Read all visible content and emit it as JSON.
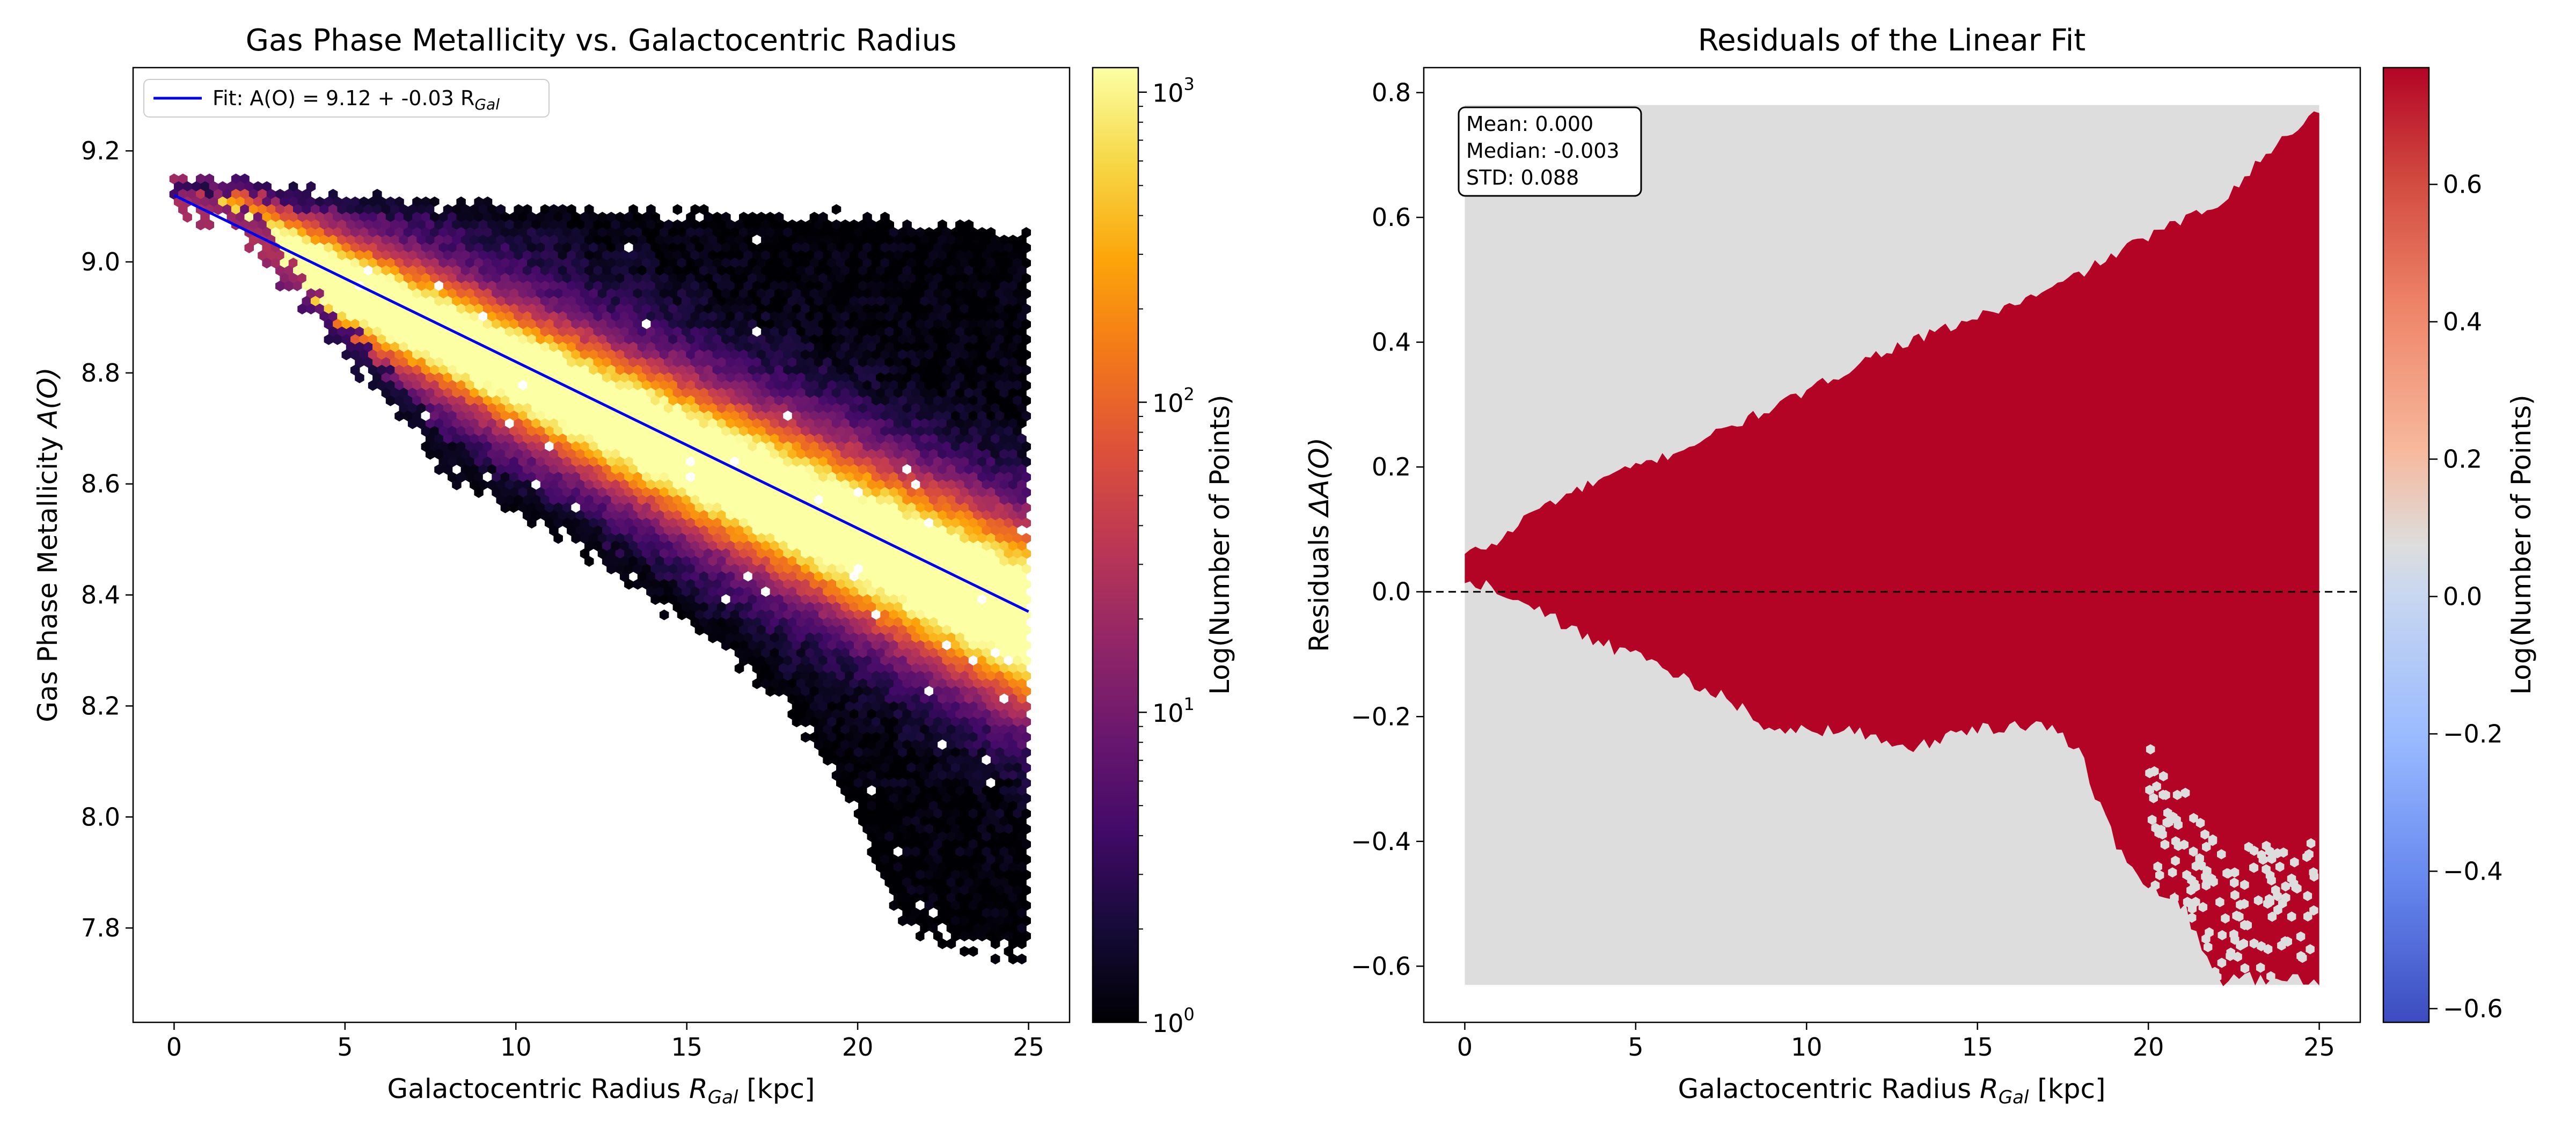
{
  "chart_data": [
    {
      "type": "heatmap",
      "subtype": "hexbin",
      "title": "Gas Phase Metallicity vs. Galactocentric Radius",
      "xlabel": "Galactocentric Radius R_Gal [kpc]",
      "xlabel_main": "Galactocentric Radius ",
      "xlabel_var": "R",
      "xlabel_sub": "Gal",
      "xlabel_unit": " [kpc]",
      "ylabel": "Gas Phase Metallicity A(O)",
      "ylabel_main": "Gas Phase Metallicity ",
      "ylabel_var": "A(O)",
      "xlim": [
        -1.2,
        26.2
      ],
      "ylim": [
        7.63,
        9.35
      ],
      "xticks": [
        0,
        5,
        10,
        15,
        20,
        25
      ],
      "xtick_labels": [
        "0",
        "5",
        "10",
        "15",
        "20",
        "25"
      ],
      "yticks": [
        7.8,
        8.0,
        8.2,
        8.4,
        8.6,
        8.8,
        9.0,
        9.2
      ],
      "ytick_labels": [
        "7.8",
        "8.0",
        "8.2",
        "8.4",
        "8.6",
        "8.8",
        "9.0",
        "9.2"
      ],
      "colormap": "inferno",
      "colorbar_label": "Log(Number of Points)",
      "colorbar_scale": "log",
      "colorbar_range": [
        1,
        1200
      ],
      "colorbar_tick_labels": [
        {
          "base": "10",
          "exp": "0",
          "value": 1
        },
        {
          "base": "10",
          "exp": "1",
          "value": 10
        },
        {
          "base": "10",
          "exp": "2",
          "value": 100
        },
        {
          "base": "10",
          "exp": "3",
          "value": 1000
        }
      ],
      "fit_line": {
        "intercept": 9.12,
        "slope": -0.03,
        "x_range": [
          0,
          25
        ],
        "color": "#0000ee"
      },
      "legend": {
        "placement": "upper-left",
        "label_prefix": "Fit: A(O) = 9.12 + -0.03 R",
        "label_sub": "Gal"
      },
      "density_model": {
        "x_range": [
          0,
          25
        ],
        "upper_envelope": [
          [
            0,
            9.15
          ],
          [
            2,
            9.15
          ],
          [
            5,
            9.12
          ],
          [
            10,
            9.1
          ],
          [
            15,
            9.09
          ],
          [
            20,
            9.08
          ],
          [
            25,
            9.05
          ]
        ],
        "lower_envelope": [
          [
            0,
            9.1
          ],
          [
            2,
            9.05
          ],
          [
            4,
            8.9
          ],
          [
            6,
            8.77
          ],
          [
            8,
            8.62
          ],
          [
            10,
            8.55
          ],
          [
            12,
            8.48
          ],
          [
            15,
            8.35
          ],
          [
            17,
            8.25
          ],
          [
            18.5,
            8.15
          ],
          [
            20,
            8.0
          ],
          [
            21,
            7.85
          ],
          [
            22,
            7.78
          ],
          [
            25,
            7.75
          ]
        ],
        "ridge_spread": 0.06
      }
    },
    {
      "type": "heatmap",
      "subtype": "hexbin",
      "title": "Residuals of the Linear Fit",
      "xlabel": "Galactocentric Radius R_Gal [kpc]",
      "xlabel_main": "Galactocentric Radius ",
      "xlabel_var": "R",
      "xlabel_sub": "Gal",
      "xlabel_unit": " [kpc]",
      "ylabel": "Residuals ΔA(O)",
      "ylabel_main": "Residuals ",
      "ylabel_var": "ΔA(O)",
      "xlim": [
        -1.2,
        26.2
      ],
      "ylim": [
        -0.69,
        0.84
      ],
      "xticks": [
        0,
        5,
        10,
        15,
        20,
        25
      ],
      "xtick_labels": [
        "0",
        "5",
        "10",
        "15",
        "20",
        "25"
      ],
      "yticks": [
        -0.6,
        -0.4,
        -0.2,
        0.0,
        0.2,
        0.4,
        0.6,
        0.8
      ],
      "ytick_labels": [
        "−0.6",
        "−0.4",
        "−0.2",
        "0.0",
        "0.2",
        "0.4",
        "0.6",
        "0.8"
      ],
      "colormap": "coolwarm",
      "colorbar_label": "Log(Number of Points)",
      "colorbar_range": [
        -0.62,
        0.77
      ],
      "colorbar_ticks": [
        -0.6,
        -0.4,
        -0.2,
        0.0,
        0.2,
        0.4,
        0.6
      ],
      "colorbar_tick_labels": [
        "−0.6",
        "−0.4",
        "−0.2",
        "0.0",
        "0.2",
        "0.4",
        "0.6"
      ],
      "reference_line": {
        "y": 0,
        "style": "dashed",
        "color": "#000000"
      },
      "stats_box": {
        "placement": "upper-left",
        "lines": [
          "Mean: 0.000",
          "Median: -0.003",
          "STD: 0.088"
        ]
      },
      "background_fill_color": "#dddddd",
      "fill_color": "#b40426",
      "background_region": {
        "x_range": [
          0,
          25
        ],
        "y_range": [
          -0.63,
          0.78
        ]
      },
      "filled_region": {
        "upper": [
          [
            0,
            0.06
          ],
          [
            1,
            0.08
          ],
          [
            2,
            0.13
          ],
          [
            4,
            0.18
          ],
          [
            6,
            0.22
          ],
          [
            8,
            0.27
          ],
          [
            10,
            0.32
          ],
          [
            12,
            0.38
          ],
          [
            15,
            0.44
          ],
          [
            17,
            0.48
          ],
          [
            20,
            0.57
          ],
          [
            22,
            0.62
          ],
          [
            24,
            0.73
          ],
          [
            25,
            0.77
          ]
        ],
        "lower": [
          [
            0,
            0.02
          ],
          [
            1,
            0.0
          ],
          [
            2,
            -0.03
          ],
          [
            4,
            -0.08
          ],
          [
            6,
            -0.13
          ],
          [
            8,
            -0.18
          ],
          [
            9,
            -0.22
          ],
          [
            11,
            -0.22
          ],
          [
            13,
            -0.25
          ],
          [
            15,
            -0.22
          ],
          [
            17,
            -0.21
          ],
          [
            18,
            -0.26
          ],
          [
            19,
            -0.4
          ],
          [
            20,
            -0.47
          ],
          [
            21,
            -0.5
          ],
          [
            22,
            -0.62
          ],
          [
            24,
            -0.62
          ],
          [
            25,
            -0.62
          ]
        ]
      }
    }
  ]
}
